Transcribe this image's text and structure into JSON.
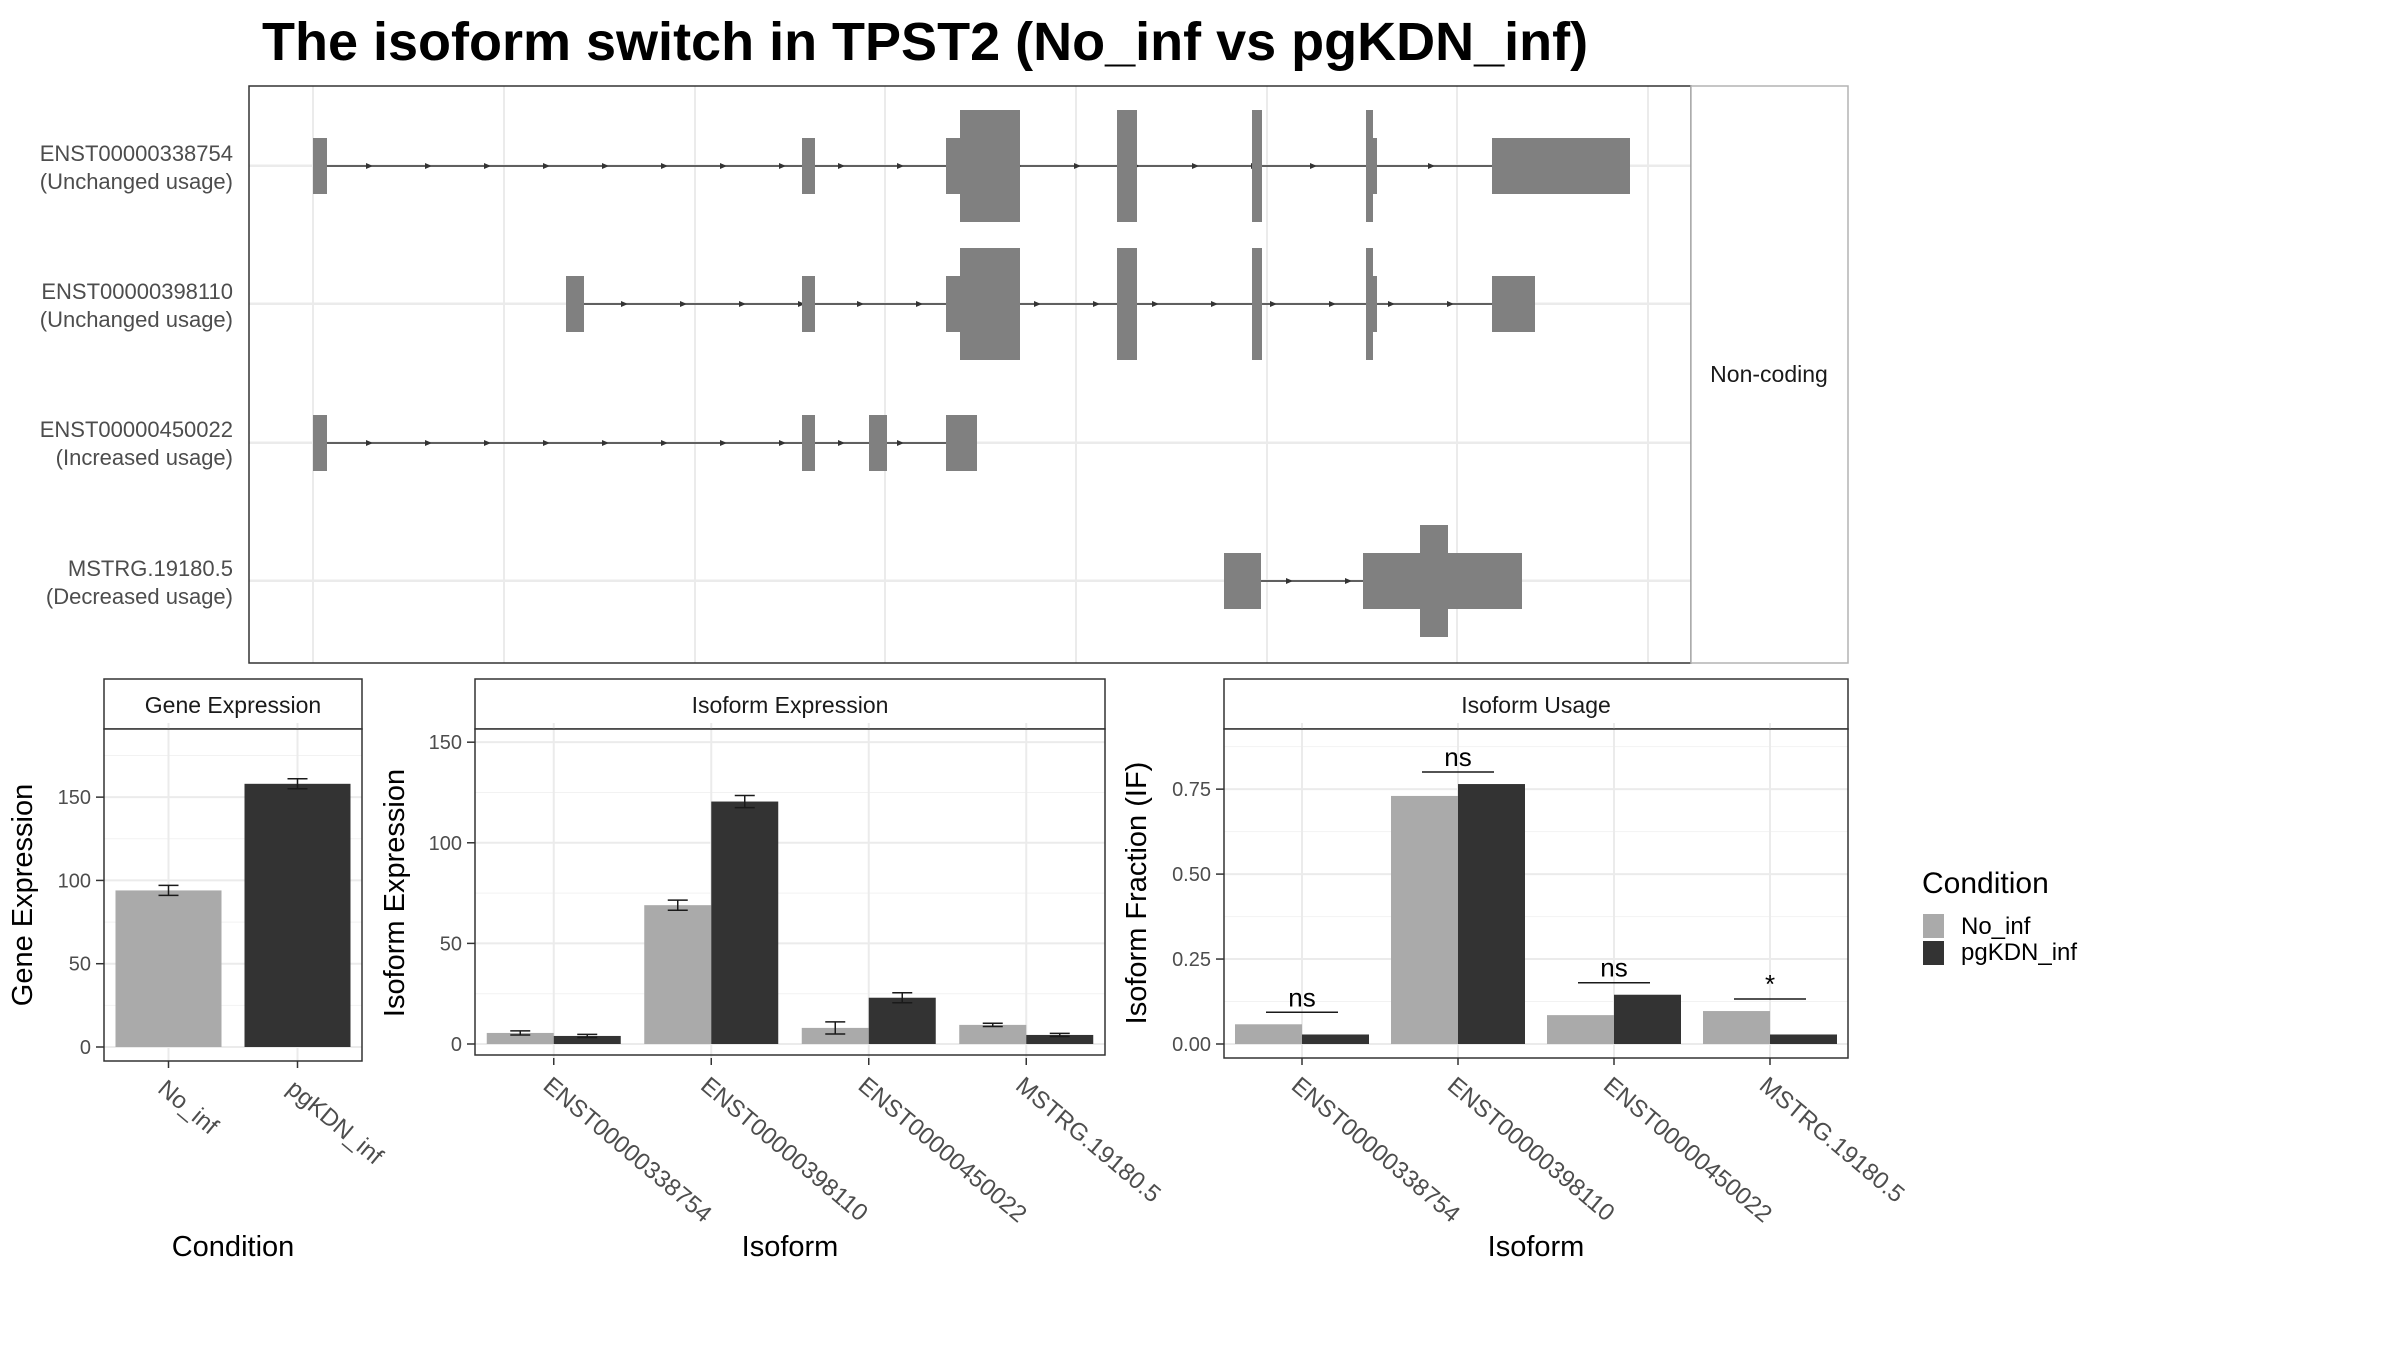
{
  "title": "The isoform switch in TPST2 (No_inf vs pgKDN_inf)",
  "colors": {
    "No_inf": "#aaaaaa",
    "pgKDN_inf": "#333333",
    "exon": "#808080",
    "grid": "#ebebeb",
    "frame": "#333333"
  },
  "chart_data": [
    {
      "type": "gene-structure",
      "strip": "Non-coding",
      "tracks": [
        {
          "name": "ENST00000338754",
          "label": "(Unchanged usage)"
        },
        {
          "name": "ENST00000398110",
          "label": "(Unchanged usage)"
        },
        {
          "name": "ENST00000450022",
          "label": "(Increased usage)"
        },
        {
          "name": "MSTRG.19180.5",
          "label": "(Decreased usage)"
        }
      ]
    },
    {
      "type": "bar",
      "title": "Gene Expression",
      "xlabel": "Condition",
      "ylabel": "Gene Expression",
      "categories": [
        "No_inf",
        "pgKDN_inf"
      ],
      "values": [
        94,
        158
      ],
      "errors": [
        3,
        3
      ],
      "ylim": [
        0,
        190
      ],
      "yticks": [
        0,
        50,
        100,
        150
      ]
    },
    {
      "type": "bar",
      "title": "Isoform Expression",
      "xlabel": "Isoform",
      "ylabel": "Isoform Expression",
      "categories": [
        "ENST00000338754",
        "ENST00000398110",
        "ENST00000450022",
        "MSTRG.19180.5"
      ],
      "series": [
        {
          "name": "No_inf",
          "values": [
            5.5,
            69,
            8,
            9.5
          ],
          "errors": [
            1,
            2.5,
            3,
            0.8
          ]
        },
        {
          "name": "pgKDN_inf",
          "values": [
            4,
            120.5,
            23,
            4.5
          ],
          "errors": [
            0.8,
            3,
            2.5,
            0.8
          ]
        }
      ],
      "ylim": [
        0,
        155
      ],
      "yticks": [
        0,
        50,
        100,
        150
      ]
    },
    {
      "type": "bar",
      "title": "Isoform Usage",
      "xlabel": "Isoform",
      "ylabel": "Isoform Fraction (IF)",
      "categories": [
        "ENST00000338754",
        "ENST00000398110",
        "ENST00000450022",
        "MSTRG.19180.5"
      ],
      "series": [
        {
          "name": "No_inf",
          "values": [
            0.058,
            0.73,
            0.085,
            0.097
          ]
        },
        {
          "name": "pgKDN_inf",
          "values": [
            0.028,
            0.765,
            0.145,
            0.028
          ]
        }
      ],
      "significance": [
        "ns",
        "ns",
        "ns",
        "*"
      ],
      "ylim": [
        0,
        0.9
      ],
      "yticks": [
        "0.00",
        "0.25",
        "0.50",
        "0.75"
      ]
    }
  ],
  "legend": {
    "title": "Condition",
    "items": [
      "No_inf",
      "pgKDN_inf"
    ]
  }
}
